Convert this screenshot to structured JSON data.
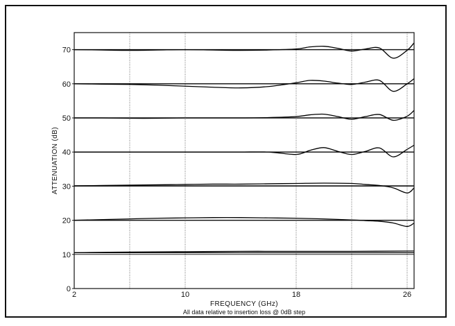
{
  "chart_data": {
    "type": "line",
    "title": "",
    "xlabel": "FREQUENCY (GHz)",
    "ylabel": "ATTENUATION (dB)",
    "note": "All data relative to insertion loss @ 0dB step",
    "xlim": [
      2,
      26.5
    ],
    "ylim": [
      0,
      75
    ],
    "xticks": [
      2,
      10,
      18,
      26
    ],
    "xtick_labels": [
      "2",
      "10",
      "18",
      "26"
    ],
    "yticks": [
      0,
      10,
      20,
      30,
      40,
      50,
      60,
      70
    ],
    "ytick_labels": [
      "0",
      "10",
      "20",
      "30",
      "40",
      "50",
      "60",
      "70"
    ],
    "grid": true,
    "series": [
      {
        "x": [
          2,
          4,
          6,
          8,
          10,
          12,
          14,
          16,
          18,
          19,
          20,
          21,
          22,
          23,
          24,
          25,
          26,
          26.5
        ],
        "y": [
          70,
          69.9,
          69.8,
          69.9,
          70,
          69.9,
          69.8,
          69.9,
          70.2,
          70.8,
          71,
          70.4,
          69.6,
          70.2,
          70.5,
          67.5,
          69.8,
          72
        ]
      },
      {
        "x": [
          2,
          4,
          6,
          8,
          10,
          12,
          14,
          16,
          18,
          19,
          20,
          21,
          22,
          23,
          24,
          25,
          26,
          26.5
        ],
        "y": [
          60,
          59.9,
          59.8,
          59.6,
          59.3,
          59,
          58.8,
          59.2,
          60.3,
          61,
          60.8,
          60.2,
          59.8,
          60.5,
          61,
          57.8,
          60,
          61.5
        ]
      },
      {
        "x": [
          2,
          4,
          6,
          8,
          10,
          12,
          14,
          16,
          18,
          19,
          20,
          21,
          22,
          23,
          24,
          25,
          26,
          26.5
        ],
        "y": [
          50,
          50,
          49.9,
          49.9,
          50,
          50,
          50,
          50.1,
          50.4,
          50.9,
          51.1,
          50.4,
          49.6,
          50.4,
          51,
          49.3,
          50.5,
          52.2
        ]
      },
      {
        "x": [
          2,
          4,
          6,
          8,
          10,
          12,
          14,
          16,
          18,
          19,
          20,
          21,
          22,
          23,
          24,
          25,
          26,
          26.5
        ],
        "y": [
          40,
          40,
          40,
          40,
          40,
          40,
          40,
          40,
          39.3,
          40.5,
          41.3,
          40.2,
          39.3,
          40.2,
          41.2,
          38.6,
          40.8,
          42
        ]
      },
      {
        "x": [
          2,
          4,
          6,
          8,
          10,
          12,
          14,
          16,
          18,
          20,
          22,
          23,
          24,
          25,
          26,
          26.5
        ],
        "y": [
          30.1,
          30.2,
          30.3,
          30.4,
          30.5,
          30.6,
          30.6,
          30.7,
          30.8,
          30.9,
          30.8,
          30.5,
          30.2,
          29.5,
          28,
          29.5
        ]
      },
      {
        "x": [
          2,
          4,
          6,
          8,
          10,
          12,
          14,
          16,
          18,
          20,
          22,
          23,
          24,
          25,
          26,
          26.5
        ],
        "y": [
          20,
          20.2,
          20.4,
          20.6,
          20.7,
          20.8,
          20.8,
          20.7,
          20.6,
          20.4,
          20.1,
          19.9,
          19.7,
          19.2,
          18.2,
          19.2
        ]
      },
      {
        "x": [
          2,
          6,
          10,
          14,
          18,
          22,
          26.5
        ],
        "y": [
          10.5,
          10.7,
          10.8,
          10.9,
          10.9,
          10.9,
          11
        ]
      }
    ]
  }
}
